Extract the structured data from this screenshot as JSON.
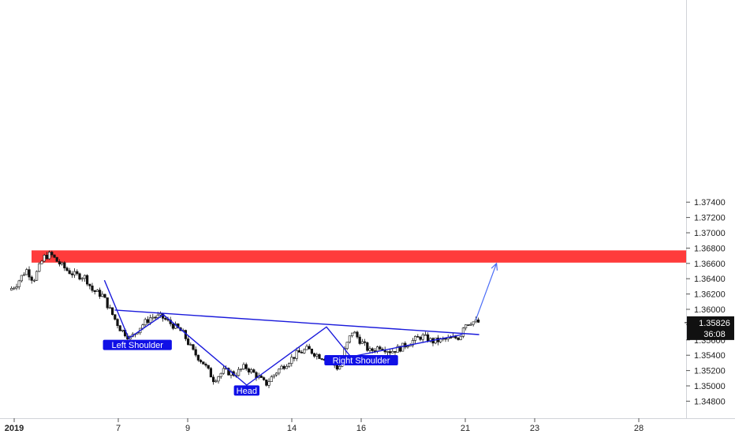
{
  "chart_data": {
    "type": "candlestick",
    "symbol_note": "",
    "ylim": [
      1.348,
      1.3755
    ],
    "y_ticks": [
      "1.34800",
      "1.35000",
      "1.35200",
      "1.35400",
      "1.35600",
      "1.35800",
      "1.36000",
      "1.36200",
      "1.36400",
      "1.36600",
      "1.36800",
      "1.37000",
      "1.37200",
      "1.37400"
    ],
    "x_ticks": [
      {
        "label": "2019",
        "day": 4,
        "bold": true
      },
      {
        "label": "7",
        "day": 7,
        "bold": false
      },
      {
        "label": "9",
        "day": 9,
        "bold": false
      },
      {
        "label": "14",
        "day": 12,
        "bold": false
      },
      {
        "label": "16",
        "day": 14,
        "bold": false
      },
      {
        "label": "21",
        "day": 17,
        "bold": false
      },
      {
        "label": "23",
        "day": 19,
        "bold": false
      },
      {
        "label": "28",
        "day": 22,
        "bold": false
      }
    ],
    "price_series": [
      [
        3.9,
        1.3625
      ],
      [
        4.1,
        1.3632
      ],
      [
        4.4,
        1.3652
      ],
      [
        4.6,
        1.3638
      ],
      [
        4.9,
        1.3668
      ],
      [
        5.1,
        1.3672
      ],
      [
        5.3,
        1.3662
      ],
      [
        5.6,
        1.365
      ],
      [
        5.8,
        1.3645
      ],
      [
        6.1,
        1.3642
      ],
      [
        6.3,
        1.3625
      ],
      [
        6.6,
        1.3618
      ],
      [
        6.8,
        1.36
      ],
      [
        7.1,
        1.3575
      ],
      [
        7.4,
        1.3562
      ],
      [
        7.7,
        1.3578
      ],
      [
        8.0,
        1.359
      ],
      [
        8.3,
        1.359
      ],
      [
        8.6,
        1.358
      ],
      [
        8.9,
        1.357
      ],
      [
        9.2,
        1.3545
      ],
      [
        9.5,
        1.353
      ],
      [
        9.8,
        1.3508
      ],
      [
        10.1,
        1.352
      ],
      [
        10.4,
        1.3515
      ],
      [
        10.7,
        1.3525
      ],
      [
        11.0,
        1.3515
      ],
      [
        11.3,
        1.3502
      ],
      [
        11.6,
        1.3518
      ],
      [
        11.9,
        1.353
      ],
      [
        12.2,
        1.3542
      ],
      [
        12.5,
        1.3548
      ],
      [
        12.8,
        1.354
      ],
      [
        13.1,
        1.3535
      ],
      [
        13.4,
        1.3522
      ],
      [
        13.6,
        1.355
      ],
      [
        13.8,
        1.3572
      ],
      [
        14.0,
        1.356
      ],
      [
        14.3,
        1.3545
      ],
      [
        14.6,
        1.3552
      ],
      [
        14.9,
        1.3545
      ],
      [
        15.2,
        1.355
      ],
      [
        15.5,
        1.3558
      ],
      [
        15.8,
        1.3565
      ],
      [
        16.1,
        1.3558
      ],
      [
        16.4,
        1.356
      ],
      [
        16.7,
        1.3562
      ],
      [
        16.9,
        1.3564
      ],
      [
        17.0,
        1.358
      ],
      [
        17.2,
        1.3584
      ],
      [
        17.4,
        1.3583
      ]
    ],
    "resistance_zone": {
      "y_low": 1.3661,
      "y_high": 1.3677,
      "color": "#ff3b3b"
    },
    "pattern_lines": {
      "color": "#1a1adb",
      "zigzag": [
        [
          6.6,
          1.3638
        ],
        [
          7.3,
          1.3562
        ],
        [
          8.3,
          1.3593
        ],
        [
          10.7,
          1.3501
        ],
        [
          13.0,
          1.3577
        ],
        [
          13.7,
          1.3538
        ],
        [
          16.9,
          1.3567
        ]
      ],
      "neckline": [
        [
          6.9,
          1.3599
        ],
        [
          17.4,
          1.3567
        ]
      ],
      "projection": [
        [
          17.3,
          1.3586
        ],
        [
          17.9,
          1.366
        ]
      ]
    },
    "annotations": [
      {
        "text": "Left Shoulder",
        "day": 7.55,
        "y": 1.35535
      },
      {
        "text": "Head",
        "day": 10.7,
        "y": 1.3494
      },
      {
        "text": "Right Shoulder",
        "day": 14.0,
        "y": 1.35335
      }
    ],
    "last_price": {
      "value": "1.35826",
      "timer": "36:08",
      "y": 1.35826,
      "bg": "#111111"
    }
  }
}
